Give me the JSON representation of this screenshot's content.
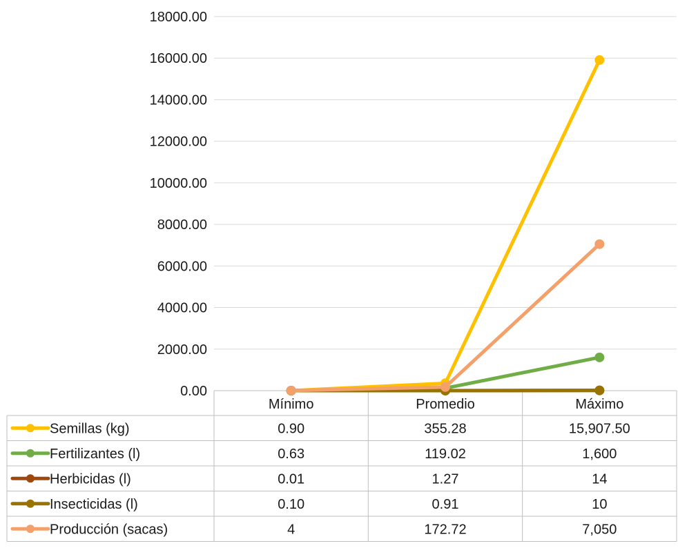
{
  "chart_data": {
    "type": "line",
    "categories": [
      "Mínimo",
      "Promedio",
      "Máximo"
    ],
    "ylim": [
      0,
      18000
    ],
    "y_ticks": [
      "0.00",
      "2000.00",
      "4000.00",
      "6000.00",
      "8000.00",
      "10000.00",
      "12000.00",
      "14000.00",
      "16000.00",
      "18000.00"
    ],
    "grid": true,
    "legend": "data-table-below",
    "series": [
      {
        "name": "Semillas (kg)",
        "color": "#FFC000",
        "values": [
          0.9,
          355.28,
          15907.5
        ],
        "labels": [
          "0.90",
          "355.28",
          "15,907.50"
        ]
      },
      {
        "name": "Fertilizantes (l)",
        "color": "#70AD47",
        "values": [
          0.63,
          119.02,
          1600
        ],
        "labels": [
          "0.63",
          "119.02",
          "1,600"
        ]
      },
      {
        "name": "Herbicidas (l)",
        "color": "#9E480E",
        "values": [
          0.01,
          1.27,
          14
        ],
        "labels": [
          "0.01",
          "1.27",
          "14"
        ]
      },
      {
        "name": "Insecticidas (l)",
        "color": "#997300",
        "values": [
          0.1,
          0.91,
          10
        ],
        "labels": [
          "0.10",
          "0.91",
          "10"
        ]
      },
      {
        "name": "Producción (sacas)",
        "color": "#F4A06A",
        "values": [
          4,
          172.72,
          7050
        ],
        "labels": [
          "4",
          "172.72",
          "7,050"
        ]
      }
    ]
  }
}
